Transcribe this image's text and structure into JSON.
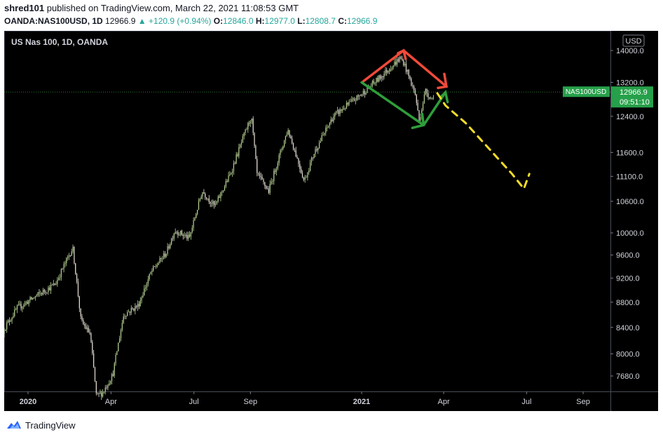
{
  "header": {
    "author": "shred101",
    "published_text": "published on TradingView.com, March 22, 2021 11:08:53 GMT",
    "symbol": "OANDA:NAS100USD, 1D",
    "last": "12966.9",
    "arrow": "▲",
    "change": "+120.9 (+0.94%)",
    "open_label": "O:",
    "open": "12846.0",
    "high_label": "H:",
    "high": "12977.0",
    "low_label": "L:",
    "low": "12808.7",
    "close_label": "C:",
    "close": "12966.9"
  },
  "footer": {
    "brand": "TradingView",
    "logo_icon": "tradingview-logo-icon"
  },
  "colors": {
    "background": "#000000",
    "up": "#b8d494",
    "down": "#e8e2d8",
    "price_line": "#2e7d32",
    "price_label": "#26a04a",
    "red_annotation": "#f04a3a",
    "green_annotation": "#2e9e3a",
    "yellow_annotation": "#f2dc28"
  },
  "chart_data": {
    "type": "candlestick",
    "title": "US Nas 100, 1D, OANDA",
    "currency": "USD",
    "x_ticks": [
      {
        "label": "2020",
        "date": "2020-01-01",
        "bold": true
      },
      {
        "label": "Apr",
        "date": "2020-04-01",
        "bold": false
      },
      {
        "label": "Jul",
        "date": "2020-07-01",
        "bold": false
      },
      {
        "label": "Sep",
        "date": "2020-09-01",
        "bold": false
      },
      {
        "label": "2021",
        "date": "2021-01-01",
        "bold": true
      },
      {
        "label": "Apr",
        "date": "2021-04-01",
        "bold": false
      },
      {
        "label": "Jul",
        "date": "2021-07-01",
        "bold": false
      },
      {
        "label": "Sep",
        "date": "2021-09-01",
        "bold": false
      }
    ],
    "y_ticks": [
      7680,
      8000,
      8400,
      8800,
      9200,
      9600,
      10000,
      10600,
      11100,
      11600,
      12400,
      13200,
      14000
    ],
    "y_tick_labels": [
      "7680.0",
      "8000.0",
      "8400.0",
      "8800.0",
      "9200.0",
      "9600.0",
      "10000.0",
      "10600.0",
      "11100.0",
      "11600.0",
      "12400.0",
      "13200.0",
      "14000.0"
    ],
    "y_scale": "log",
    "y_range": [
      7400,
      14200
    ],
    "current_price": {
      "symbol": "NAS100USD",
      "price": "12966.9",
      "countdown": "09:51:10",
      "value": 12966.9
    },
    "price_path": [
      [
        "2019-12-02",
        8300
      ],
      [
        "2019-12-20",
        8700
      ],
      [
        "2020-01-10",
        8900
      ],
      [
        "2020-01-31",
        9100
      ],
      [
        "2020-02-19",
        9730
      ],
      [
        "2020-02-28",
        8500
      ],
      [
        "2020-03-09",
        8300
      ],
      [
        "2020-03-16",
        7400
      ],
      [
        "2020-03-23",
        7450
      ],
      [
        "2020-04-03",
        7700
      ],
      [
        "2020-04-15",
        8600
      ],
      [
        "2020-05-01",
        8750
      ],
      [
        "2020-05-15",
        9300
      ],
      [
        "2020-06-01",
        9650
      ],
      [
        "2020-06-10",
        10050
      ],
      [
        "2020-06-26",
        9900
      ],
      [
        "2020-07-10",
        10800
      ],
      [
        "2020-07-24",
        10500
      ],
      [
        "2020-08-10",
        11150
      ],
      [
        "2020-09-02",
        12400
      ],
      [
        "2020-09-08",
        11150
      ],
      [
        "2020-09-21",
        10800
      ],
      [
        "2020-10-12",
        12100
      ],
      [
        "2020-10-30",
        11000
      ],
      [
        "2020-11-10",
        11600
      ],
      [
        "2020-12-01",
        12400
      ],
      [
        "2020-12-31",
        12900
      ],
      [
        "2021-01-20",
        13300
      ],
      [
        "2021-02-12",
        13800
      ],
      [
        "2021-02-16",
        13700
      ],
      [
        "2021-03-01",
        12900
      ],
      [
        "2021-03-05",
        12300
      ],
      [
        "2021-03-12",
        13000
      ],
      [
        "2021-03-19",
        12800
      ],
      [
        "2021-03-22",
        12966.9
      ]
    ],
    "annotations": {
      "red_path": [
        [
          "2021-01-03",
          13230
        ],
        [
          "2021-02-16",
          14000
        ],
        [
          "2021-04-04",
          13100
        ]
      ],
      "green_path": [
        [
          "2021-01-01",
          13200
        ],
        [
          "2021-03-10",
          12200
        ],
        [
          "2021-04-03",
          12960
        ]
      ],
      "yellow_path": [
        [
          "2021-03-25",
          12940
        ],
        [
          "2021-04-03",
          12650
        ],
        [
          "2021-04-25",
          12250
        ],
        [
          "2021-06-15",
          11150
        ],
        [
          "2021-06-28",
          10850
        ],
        [
          "2021-07-04",
          11150
        ]
      ]
    }
  }
}
